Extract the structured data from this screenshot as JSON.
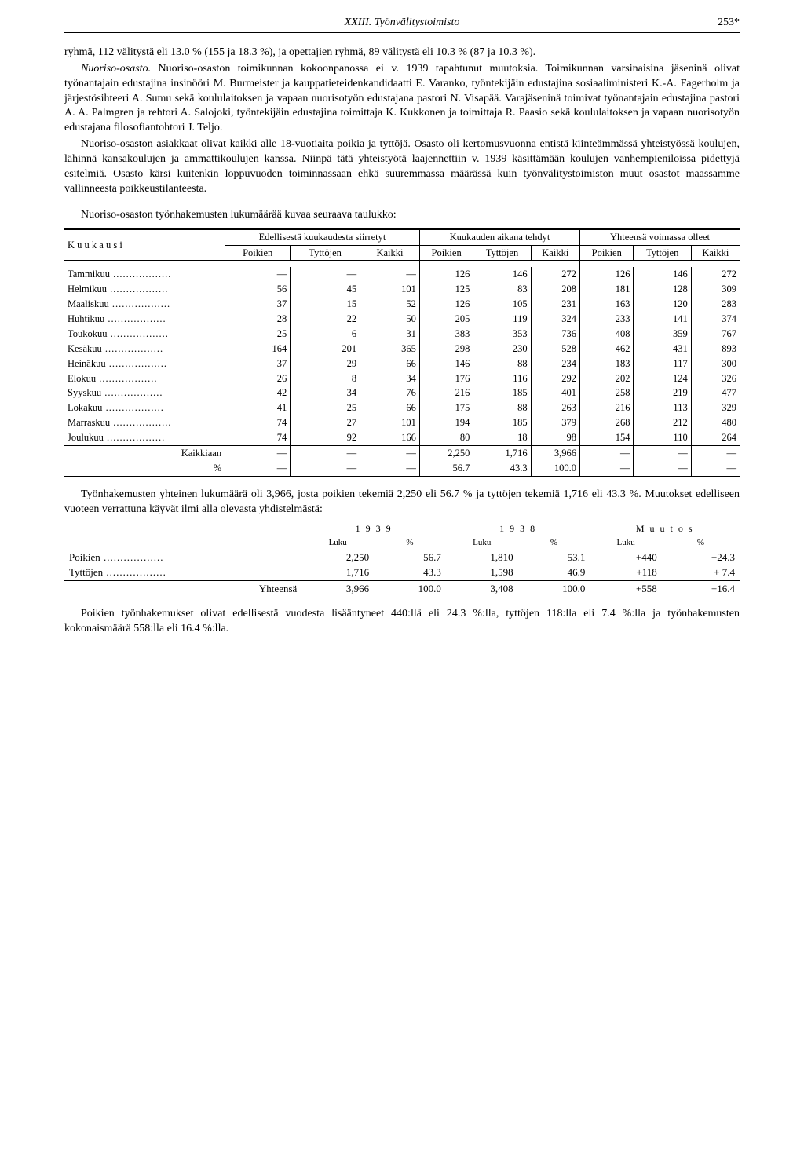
{
  "header": {
    "title": "XXIII. Työnvälitystoimisto",
    "page": "253*"
  },
  "para1": "ryhmä, 112 välitystä eli 13.0 % (155 ja 18.3 %), ja opettajien ryhmä, 89 välitystä eli 10.3 % (87 ja 10.3 %).",
  "para2_label": "Nuoriso-osasto.",
  "para2": " Nuoriso-osaston toimikunnan kokoonpanossa ei v. 1939 tapahtunut muutoksia. Toimikunnan varsinaisina jäseninä olivat työnantajain edustajina insinööri M. Burmeister ja kauppatieteidenkandidaatti E. Varanko, työntekijäin edustajina sosiaaliministeri K.-A. Fagerholm ja järjestösihteeri A. Sumu sekä koululaitoksen ja vapaan nuorisotyön edustajana pastori N. Visapää. Varajäseninä toimivat työnantajain edustajina pastori A. A. Palmgren ja rehtori A. Salojoki, työntekijäin edustajina toimittaja K. Kukkonen ja toimittaja R. Paasio sekä koululaitoksen ja vapaan nuorisotyön edustajana filosofiantohtori J. Teljo.",
  "para3": "Nuoriso-osaston asiakkaat olivat kaikki alle 18-vuotiaita poikia ja tyttöjä. Osasto oli kertomusvuonna entistä kiinteämmässä yhteistyössä koulujen, lähinnä kansakoulujen ja ammattikoulujen kanssa. Niinpä tätä yhteistyötä laajennettiin v. 1939 käsittämään koulujen vanhempieniloissa pidettyjä esitelmiä. Osasto kärsi kuitenkin loppuvuoden toiminnassaan ehkä suuremmassa määrässä kuin työnvälitystoimiston muut osastot maassamme vallinneesta poikkeustilanteesta.",
  "caption1": "Nuoriso-osaston työnhakemusten lukumäärää kuvaa seuraava taulukko:",
  "t1": {
    "col_month": "K u u k a u s i",
    "grp1": "Edellisestä kuukaudesta siirretyt",
    "grp2": "Kuukauden aikana tehdyt",
    "grp3": "Yhteensä voimassa olleet",
    "sub": [
      "Poikien",
      "Tyttöjen",
      "Kaikki"
    ],
    "rows": [
      {
        "m": "Tammikuu",
        "a": [
          "—",
          "—",
          "—"
        ],
        "b": [
          "126",
          "146",
          "272"
        ],
        "c": [
          "126",
          "146",
          "272"
        ]
      },
      {
        "m": "Helmikuu",
        "a": [
          "56",
          "45",
          "101"
        ],
        "b": [
          "125",
          "83",
          "208"
        ],
        "c": [
          "181",
          "128",
          "309"
        ]
      },
      {
        "m": "Maaliskuu",
        "a": [
          "37",
          "15",
          "52"
        ],
        "b": [
          "126",
          "105",
          "231"
        ],
        "c": [
          "163",
          "120",
          "283"
        ]
      },
      {
        "m": "Huhtikuu",
        "a": [
          "28",
          "22",
          "50"
        ],
        "b": [
          "205",
          "119",
          "324"
        ],
        "c": [
          "233",
          "141",
          "374"
        ]
      },
      {
        "m": "Toukokuu",
        "a": [
          "25",
          "6",
          "31"
        ],
        "b": [
          "383",
          "353",
          "736"
        ],
        "c": [
          "408",
          "359",
          "767"
        ]
      },
      {
        "m": "Kesäkuu",
        "a": [
          "164",
          "201",
          "365"
        ],
        "b": [
          "298",
          "230",
          "528"
        ],
        "c": [
          "462",
          "431",
          "893"
        ]
      },
      {
        "m": "Heinäkuu",
        "a": [
          "37",
          "29",
          "66"
        ],
        "b": [
          "146",
          "88",
          "234"
        ],
        "c": [
          "183",
          "117",
          "300"
        ]
      },
      {
        "m": "Elokuu",
        "a": [
          "26",
          "8",
          "34"
        ],
        "b": [
          "176",
          "116",
          "292"
        ],
        "c": [
          "202",
          "124",
          "326"
        ]
      },
      {
        "m": "Syyskuu",
        "a": [
          "42",
          "34",
          "76"
        ],
        "b": [
          "216",
          "185",
          "401"
        ],
        "c": [
          "258",
          "219",
          "477"
        ]
      },
      {
        "m": "Lokakuu",
        "a": [
          "41",
          "25",
          "66"
        ],
        "b": [
          "175",
          "88",
          "263"
        ],
        "c": [
          "216",
          "113",
          "329"
        ]
      },
      {
        "m": "Marraskuu",
        "a": [
          "74",
          "27",
          "101"
        ],
        "b": [
          "194",
          "185",
          "379"
        ],
        "c": [
          "268",
          "212",
          "480"
        ]
      },
      {
        "m": "Joulukuu",
        "a": [
          "74",
          "92",
          "166"
        ],
        "b": [
          "80",
          "18",
          "98"
        ],
        "c": [
          "154",
          "110",
          "264"
        ]
      }
    ],
    "total_label": "Kaikkiaan",
    "pct_label": "%",
    "total_a": [
      "—",
      "—",
      "—"
    ],
    "total_b": [
      "2,250",
      "1,716",
      "3,966"
    ],
    "total_c": [
      "—",
      "—",
      "—"
    ],
    "pct_a": [
      "—",
      "—",
      "—"
    ],
    "pct_b": [
      "56.7",
      "43.3",
      "100.0"
    ],
    "pct_c": [
      "—",
      "—",
      "—"
    ]
  },
  "para4": "Työnhakemusten yhteinen lukumäärä oli 3,966, josta poikien tekemiä 2,250 eli 56.7 % ja tyttöjen tekemiä 1,716 eli 43.3 %. Muutokset edelliseen vuoteen verrattuna käyvät ilmi alla olevasta yhdistelmästä:",
  "t2": {
    "years": [
      "1 9 3 9",
      "1 9 3 8",
      "M u u t o s"
    ],
    "subs": [
      "Luku",
      "%"
    ],
    "rows": [
      {
        "label": "Poikien",
        "y1": [
          "2,250",
          "56.7"
        ],
        "y2": [
          "1,810",
          "53.1"
        ],
        "d": [
          "+440",
          "+24.3"
        ]
      },
      {
        "label": "Tyttöjen",
        "y1": [
          "1,716",
          "43.3"
        ],
        "y2": [
          "1,598",
          "46.9"
        ],
        "d": [
          "+118",
          "+ 7.4"
        ]
      }
    ],
    "total_label": "Yhteensä",
    "total": {
      "y1": [
        "3,966",
        "100.0"
      ],
      "y2": [
        "3,408",
        "100.0"
      ],
      "d": [
        "+558",
        "+16.4"
      ]
    }
  },
  "para5": "Poikien työnhakemukset olivat edellisestä vuodesta lisääntyneet 440:llä eli 24.3 %:lla, tyttöjen 118:lla eli 7.4 %:lla ja työnhakemusten kokonaismäärä 558:lla eli 16.4 %:lla."
}
